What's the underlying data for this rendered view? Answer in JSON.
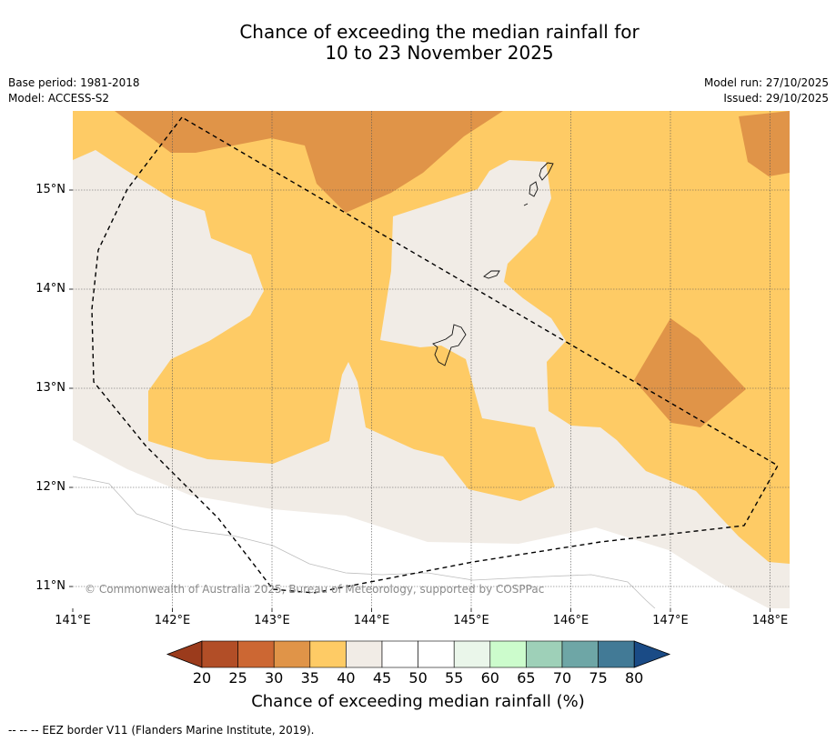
{
  "title": {
    "line1": "Chance of exceeding the median rainfall for",
    "line2": "10 to 23 November 2025"
  },
  "info": {
    "base_period": "Base period: 1981-2018",
    "model": "Model: ACCESS-S2",
    "model_run": "Model run: 27/10/2025",
    "issued": "Issued: 29/10/2025"
  },
  "map": {
    "latitude_labels": [
      "15°N",
      "14°N",
      "13°N",
      "12°N",
      "11°N"
    ],
    "longitude_labels": [
      "141°E",
      "142°E",
      "143°E",
      "144°E",
      "145°E",
      "146°E",
      "147°E",
      "148°E"
    ],
    "copyright": "© Commonwealth of Australia 2025, Bureau of Meteorology, supported by COSPPac",
    "colors": {
      "band_30_35": "#e09448",
      "band_35_40": "#fecb65",
      "band_40_45": "#f1ece6",
      "band_45_55": "#ffffff"
    }
  },
  "legend": {
    "ticks": [
      "20",
      "25",
      "30",
      "35",
      "40",
      "45",
      "50",
      "55",
      "60",
      "65",
      "70",
      "75",
      "80"
    ],
    "colors": [
      "#9b3b1c",
      "#b24e27",
      "#cc6733",
      "#e09448",
      "#fecb65",
      "#f1ece6",
      "#ffffff",
      "#ffffff",
      "#eaf6ea",
      "#ccfccc",
      "#9ed0b8",
      "#6ea6a6",
      "#427a96",
      "#1a4b86"
    ],
    "label": "Chance of exceeding median rainfall (%)"
  },
  "footnote": "--  --  -- EEZ border V11 (Flanders Marine Institute, 2019)."
}
